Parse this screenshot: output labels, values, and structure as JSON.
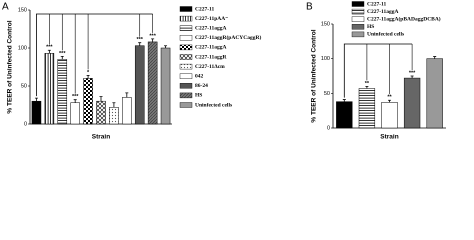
{
  "chart_data": [
    {
      "type": "bar",
      "panel": "A",
      "ylabel": "% TEER of Uninfected Control",
      "xlabel": "Strain",
      "categories": [
        "C227-11",
        "C227-11pAA⁻",
        "C227-11aggA",
        "C227-11aggR(pACYCaggR)",
        "C227-11aggA",
        "C227-11aggR",
        "C227-11Δcm",
        "042",
        "86-24",
        "HS",
        "Uninfected cells"
      ],
      "values": [
        30,
        93,
        85,
        28,
        60,
        30,
        22,
        35,
        103,
        108,
        100
      ],
      "errors": [
        4,
        4,
        4,
        4,
        4,
        6,
        6,
        6,
        4,
        4,
        3
      ],
      "significance": [
        null,
        "***",
        "***",
        "***",
        "*",
        null,
        null,
        null,
        "***",
        "***",
        null
      ],
      "ylim": [
        0,
        150
      ],
      "yticks": [
        0,
        50,
        100,
        150
      ]
    },
    {
      "type": "bar",
      "panel": "B",
      "ylabel": "% TEER of Uninfected Control",
      "xlabel": "Strain",
      "categories": [
        "C227-11",
        "C227-11aggA",
        "C227-11aggA(pBADaggDCBA)",
        "HS",
        "Uninfected cells"
      ],
      "values": [
        38,
        57,
        37,
        72,
        100
      ],
      "errors": [
        3,
        3,
        3,
        3,
        3
      ],
      "significance": [
        null,
        "**",
        "**",
        "***",
        null
      ],
      "ylim": [
        0,
        150
      ],
      "yticks": [
        0,
        50,
        100,
        150
      ]
    }
  ]
}
